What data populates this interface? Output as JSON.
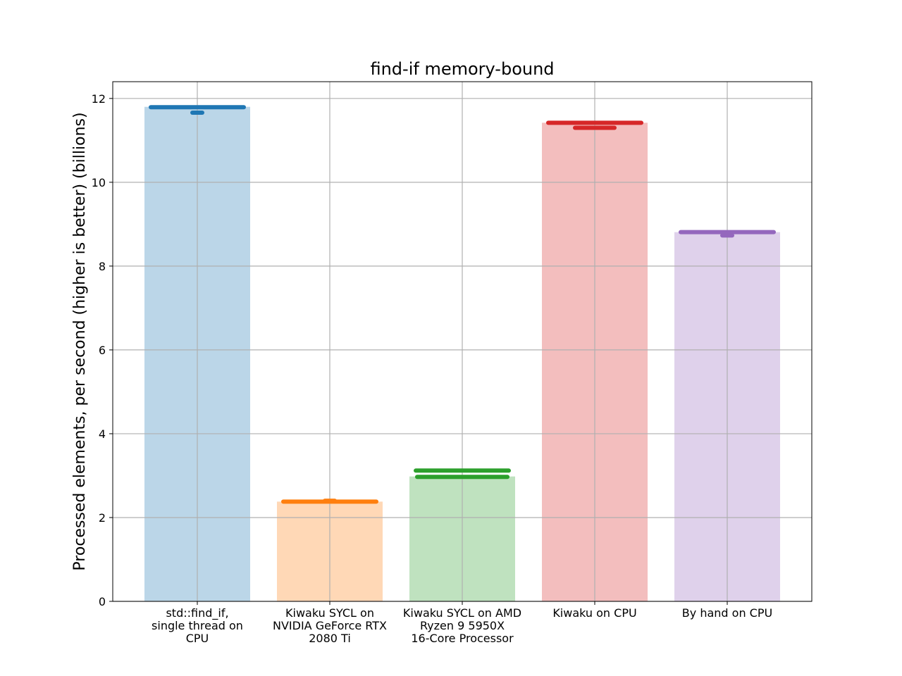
{
  "chart_data": {
    "type": "bar",
    "title": "find-if memory-bound",
    "xlabel": "",
    "ylabel": "Processed elements, per second (higher is better) (billions)",
    "ylim": [
      0,
      12.4
    ],
    "yticks": [
      0,
      2,
      4,
      6,
      8,
      10,
      12
    ],
    "grid": true,
    "categories": [
      [
        "std::find_if,",
        "single thread on",
        "CPU"
      ],
      [
        "Kiwaku SYCL on",
        "NVIDIA GeForce RTX",
        "2080 Ti"
      ],
      [
        "Kiwaku SYCL on AMD",
        "Ryzen 9 5950X",
        "16-Core Processor"
      ],
      [
        "Kiwaku on CPU"
      ],
      [
        "By hand on CPU"
      ]
    ],
    "values": [
      11.8,
      2.38,
      2.98,
      11.42,
      8.81
    ],
    "samples": [
      [
        11.79,
        11.66
      ],
      [
        2.38,
        2.4
      ],
      [
        3.12,
        2.97
      ],
      [
        11.42,
        11.3
      ],
      [
        8.81,
        8.73
      ]
    ],
    "colors": [
      "#1f77b4",
      "#ff7f0e",
      "#2ca02c",
      "#d62728",
      "#9467bd"
    ]
  }
}
